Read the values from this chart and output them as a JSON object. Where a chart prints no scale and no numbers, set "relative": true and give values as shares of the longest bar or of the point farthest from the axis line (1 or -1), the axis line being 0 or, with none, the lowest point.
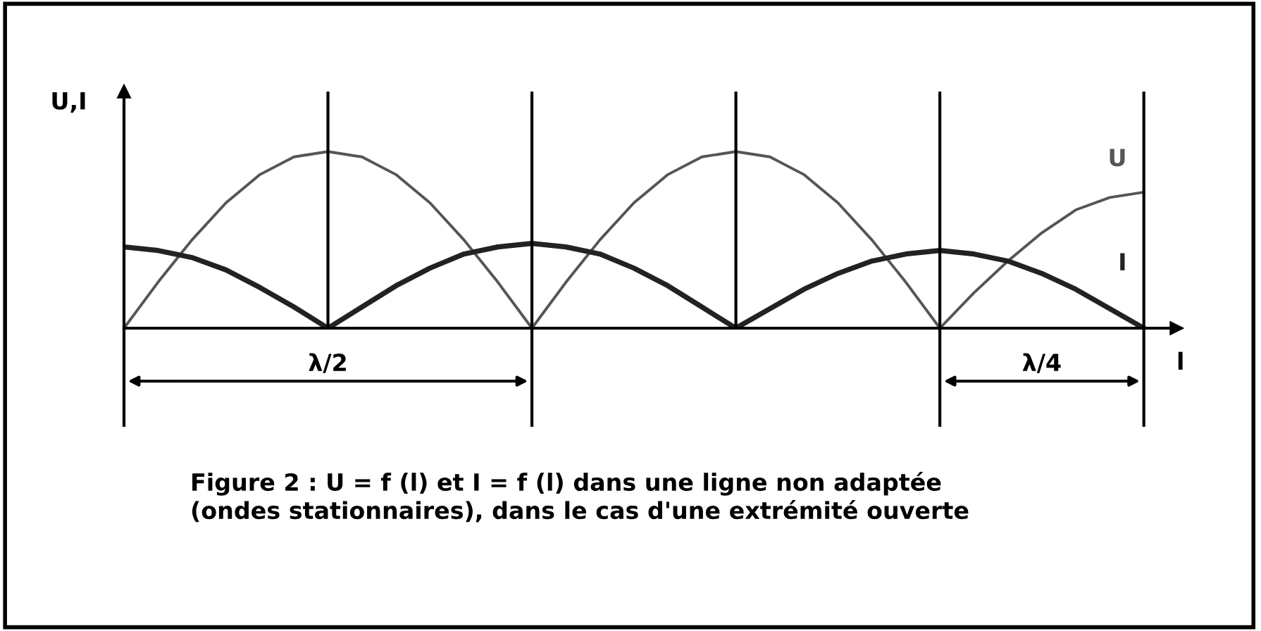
{
  "chart_data": {
    "type": "line",
    "relative": true,
    "xlabel": "l",
    "ylabel": "U,I",
    "categories": [
      null,
      null,
      null,
      null,
      null,
      null,
      null,
      null,
      null,
      null,
      null,
      null,
      null,
      null,
      null,
      null,
      null,
      null,
      null,
      null,
      null,
      null,
      null,
      null,
      null,
      null,
      null,
      null,
      null,
      null,
      null
    ],
    "series": [
      {
        "name": "U",
        "color": "#555555",
        "values": [
          0,
          0.26,
          0.5,
          0.71,
          0.87,
          0.97,
          1,
          0.97,
          0.87,
          0.71,
          0.5,
          0.26,
          0,
          0.26,
          0.5,
          0.71,
          0.87,
          0.97,
          1,
          0.97,
          0.87,
          0.71,
          0.5,
          0.26,
          0,
          0.2,
          0.38,
          0.54,
          0.67,
          0.74,
          0.77
        ]
      },
      {
        "name": "I",
        "color": "#222222",
        "values": [
          0.46,
          0.44,
          0.4,
          0.33,
          0.23,
          0.12,
          0,
          0.12,
          0.24,
          0.34,
          0.42,
          0.46,
          0.48,
          0.46,
          0.42,
          0.34,
          0.24,
          0.12,
          0,
          0.11,
          0.22,
          0.31,
          0.38,
          0.42,
          0.44,
          0.42,
          0.38,
          0.31,
          0.22,
          0.11,
          0
        ]
      }
    ],
    "grid": "x",
    "annotations": [
      "λ/2",
      "λ/4",
      "Figure 2 : U = f (l) et I = f (l) dans une ligne non adaptée\n(ondes stationnaires), dans le cas d'une extrémité ouverte"
    ]
  }
}
